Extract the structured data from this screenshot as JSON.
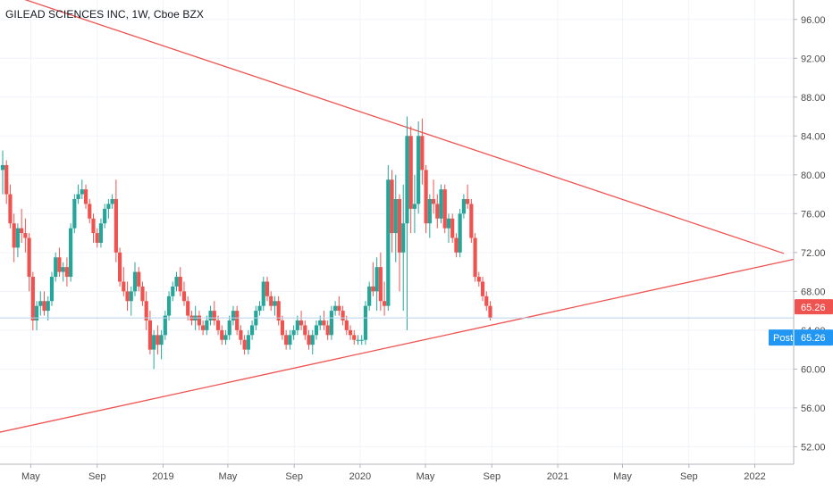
{
  "header": {
    "title": "GILEAD SCIENCES INC, 1W, Cboe BZX"
  },
  "colors": {
    "up": "#26a69a",
    "down": "#ef5350",
    "trendline": "#ef5350",
    "grid": "#f0f3fa",
    "axis_text": "#4a4a4a",
    "price_badge": "#ef5350",
    "post_badge": "#2196f3"
  },
  "badges": {
    "last_price": "65.26",
    "post_label": "Post",
    "post_price": "65.26"
  },
  "chart_data": {
    "type": "candlestick",
    "title": "GILEAD SCIENCES INC, 1W, Cboe BZX",
    "y_axis": {
      "position": "right",
      "range": [
        50.2,
        98.0
      ],
      "ticks": [
        52,
        56,
        60,
        64,
        68,
        72,
        76,
        80,
        84,
        88,
        92,
        96
      ],
      "tick_labels": [
        "52.00",
        "56.00",
        "60.00",
        "64.00",
        "68.00",
        "72.00",
        "76.00",
        "80.00",
        "84.00",
        "88.00",
        "92.00",
        "96.00"
      ]
    },
    "x_axis": {
      "range": [
        "2018-03-05",
        "2022-03-14"
      ],
      "tick_dates": [
        "2018-05-01",
        "2018-09-01",
        "2019-01-01",
        "2019-05-01",
        "2019-09-01",
        "2020-01-01",
        "2020-05-01",
        "2020-09-01",
        "2021-01-01",
        "2021-05-01",
        "2021-09-01",
        "2022-01-01"
      ],
      "tick_labels": [
        "May",
        "Sep",
        "2019",
        "May",
        "Sep",
        "2020",
        "May",
        "Sep",
        "2021",
        "May",
        "Sep",
        "2022"
      ]
    },
    "last_price_line": 65.26,
    "trendlines": [
      {
        "from": [
          "2018-02-01",
          99.5
        ],
        "to": [
          "2022-02-24",
          71.9
        ]
      },
      {
        "from": [
          "2018-03-05",
          53.5
        ],
        "to": [
          "2022-03-14",
          71.3
        ]
      }
    ],
    "candles": [
      [
        "2018-03-05",
        80.5,
        82.5,
        78,
        81
      ],
      [
        "2018-03-12",
        81,
        81.5,
        77,
        78
      ],
      [
        "2018-03-19",
        78,
        79,
        74.5,
        75
      ],
      [
        "2018-03-26",
        75,
        76,
        71,
        72.5
      ],
      [
        "2018-04-02",
        72.5,
        75,
        71.5,
        74.5
      ],
      [
        "2018-04-09",
        74.5,
        76.5,
        73,
        74
      ],
      [
        "2018-04-16",
        74,
        75.5,
        72,
        73.5
      ],
      [
        "2018-04-23",
        73.5,
        74,
        68,
        69.5
      ],
      [
        "2018-04-30",
        69.5,
        70,
        64,
        65
      ],
      [
        "2018-05-07",
        65,
        67,
        64,
        66.5
      ],
      [
        "2018-05-14",
        66.5,
        68,
        65.5,
        67
      ],
      [
        "2018-05-21",
        67,
        68,
        65.5,
        66
      ],
      [
        "2018-05-28",
        66,
        67.5,
        65,
        67
      ],
      [
        "2018-06-04",
        67,
        70,
        66.5,
        69.5
      ],
      [
        "2018-06-11",
        69.5,
        72,
        69,
        71.5
      ],
      [
        "2018-06-18",
        71.5,
        72.5,
        69.5,
        70
      ],
      [
        "2018-06-25",
        70,
        71,
        69,
        70.5
      ],
      [
        "2018-07-02",
        70.5,
        71.5,
        68.5,
        69.5
      ],
      [
        "2018-07-09",
        69.5,
        75,
        69,
        74.5
      ],
      [
        "2018-07-16",
        74.5,
        78,
        74,
        77.5
      ],
      [
        "2018-07-23",
        77.5,
        79,
        77,
        78
      ],
      [
        "2018-07-30",
        78,
        79.5,
        77.5,
        78.5
      ],
      [
        "2018-08-06",
        78.5,
        79,
        76.5,
        77
      ],
      [
        "2018-08-13",
        77,
        77.5,
        75,
        75.5
      ],
      [
        "2018-08-20",
        75.5,
        76,
        73,
        74
      ],
      [
        "2018-08-27",
        74,
        74.5,
        72.5,
        73
      ],
      [
        "2018-09-03",
        73,
        75.5,
        72.5,
        75
      ],
      [
        "2018-09-10",
        75,
        77,
        74.5,
        76.5
      ],
      [
        "2018-09-17",
        76.5,
        77.5,
        75.5,
        77
      ],
      [
        "2018-09-24",
        77,
        78,
        76.5,
        77.5
      ],
      [
        "2018-10-01",
        77.5,
        79.5,
        71,
        72
      ],
      [
        "2018-10-08",
        72,
        72.5,
        68.5,
        69
      ],
      [
        "2018-10-15",
        69,
        70.5,
        67.5,
        68
      ],
      [
        "2018-10-22",
        68,
        69,
        66,
        67
      ],
      [
        "2018-10-29",
        67,
        68.5,
        65.5,
        68
      ],
      [
        "2018-11-05",
        68,
        71,
        67.5,
        70
      ],
      [
        "2018-11-12",
        70,
        70.5,
        68,
        68.5
      ],
      [
        "2018-11-19",
        68.5,
        69,
        66.5,
        67
      ],
      [
        "2018-11-26",
        67,
        68,
        64,
        65
      ],
      [
        "2018-12-03",
        65,
        66,
        61.5,
        62
      ],
      [
        "2018-12-10",
        62,
        64,
        60,
        63.5
      ],
      [
        "2018-12-17",
        63.5,
        64.5,
        61.5,
        62.5
      ],
      [
        "2018-12-24",
        62.5,
        64,
        61,
        63.5
      ],
      [
        "2018-12-31",
        63.5,
        66,
        63,
        65.5
      ],
      [
        "2019-01-07",
        65.5,
        68,
        65,
        67.5
      ],
      [
        "2019-01-14",
        67.5,
        69,
        67,
        68.5
      ],
      [
        "2019-01-21",
        68.5,
        70,
        68,
        69.5
      ],
      [
        "2019-01-28",
        69.5,
        70.5,
        67.5,
        68
      ],
      [
        "2019-02-04",
        68,
        69,
        66.5,
        67
      ],
      [
        "2019-02-11",
        67,
        67.5,
        65,
        65.5
      ],
      [
        "2019-02-18",
        65.5,
        66,
        64.5,
        65
      ],
      [
        "2019-02-25",
        65,
        66.5,
        64,
        65.5
      ],
      [
        "2019-03-04",
        65.5,
        66,
        64,
        64.5
      ],
      [
        "2019-03-11",
        64.5,
        65,
        63.5,
        64
      ],
      [
        "2019-03-18",
        64,
        65.5,
        63.5,
        65
      ],
      [
        "2019-03-25",
        65,
        66.5,
        64.5,
        66
      ],
      [
        "2019-04-01",
        66,
        67,
        64.5,
        65
      ],
      [
        "2019-04-08",
        65,
        65.5,
        63.5,
        64
      ],
      [
        "2019-04-15",
        64,
        64.5,
        62.5,
        63
      ],
      [
        "2019-04-22",
        63,
        64,
        62.5,
        63.5
      ],
      [
        "2019-04-29",
        63.5,
        65.5,
        63,
        65
      ],
      [
        "2019-05-06",
        65,
        66.5,
        64.5,
        66
      ],
      [
        "2019-05-13",
        66,
        66.5,
        63.5,
        64
      ],
      [
        "2019-05-20",
        64,
        64.5,
        62.5,
        63
      ],
      [
        "2019-05-27",
        63,
        63.5,
        61.5,
        62
      ],
      [
        "2019-06-03",
        62,
        64,
        61.5,
        63.5
      ],
      [
        "2019-06-10",
        63.5,
        65,
        63,
        64.5
      ],
      [
        "2019-06-17",
        64.5,
        66.5,
        64,
        66
      ],
      [
        "2019-06-24",
        66,
        67,
        65.5,
        66.5
      ],
      [
        "2019-07-01",
        66.5,
        69.5,
        66,
        69
      ],
      [
        "2019-07-08",
        69,
        69.5,
        67,
        67.5
      ],
      [
        "2019-07-15",
        67.5,
        68,
        66,
        66.5
      ],
      [
        "2019-07-22",
        66.5,
        67.5,
        65.5,
        67
      ],
      [
        "2019-07-29",
        67,
        67.5,
        64.5,
        65
      ],
      [
        "2019-08-05",
        65,
        65.5,
        63,
        63.5
      ],
      [
        "2019-08-12",
        63.5,
        64,
        62,
        62.5
      ],
      [
        "2019-08-19",
        62.5,
        64,
        62,
        63.5
      ],
      [
        "2019-08-26",
        63.5,
        64.5,
        63,
        64
      ],
      [
        "2019-09-02",
        64,
        65.5,
        63.5,
        65
      ],
      [
        "2019-09-09",
        65,
        66,
        64,
        64.5
      ],
      [
        "2019-09-16",
        64.5,
        65,
        63,
        63.5
      ],
      [
        "2019-09-23",
        63.5,
        64,
        62,
        62.5
      ],
      [
        "2019-09-30",
        62.5,
        64,
        61.5,
        63.5
      ],
      [
        "2019-10-07",
        63.5,
        65,
        63,
        64.5
      ],
      [
        "2019-10-14",
        64.5,
        65.5,
        64,
        65
      ],
      [
        "2019-10-21",
        65,
        66,
        64,
        64.5
      ],
      [
        "2019-10-28",
        64.5,
        65,
        63,
        63.5
      ],
      [
        "2019-11-04",
        63.5,
        66.5,
        63,
        66
      ],
      [
        "2019-11-11",
        66,
        67,
        65.5,
        66.5
      ],
      [
        "2019-11-18",
        66.5,
        67.5,
        65.5,
        66
      ],
      [
        "2019-11-25",
        66,
        66.5,
        64.5,
        65
      ],
      [
        "2019-12-02",
        65,
        65.5,
        63.5,
        64
      ],
      [
        "2019-12-09",
        64,
        64.5,
        63,
        63.5
      ],
      [
        "2019-12-16",
        63.5,
        64,
        62.5,
        63
      ],
      [
        "2019-12-23",
        63,
        63.5,
        62.5,
        63
      ],
      [
        "2019-12-30",
        63,
        63.5,
        62.5,
        63
      ],
      [
        "2020-01-06",
        63,
        67,
        62.5,
        66.5
      ],
      [
        "2020-01-13",
        66.5,
        69,
        66,
        68.5
      ],
      [
        "2020-01-20",
        68.5,
        71,
        67.5,
        68
      ],
      [
        "2020-01-27",
        68,
        71.5,
        66,
        70.5
      ],
      [
        "2020-02-03",
        70.5,
        72,
        66,
        67
      ],
      [
        "2020-02-10",
        67,
        69,
        65.5,
        66.5
      ],
      [
        "2020-02-17",
        66.5,
        81,
        66,
        79.5
      ],
      [
        "2020-02-24",
        79.5,
        80.5,
        72,
        74
      ],
      [
        "2020-03-02",
        74,
        80,
        71,
        77.5
      ],
      [
        "2020-03-09",
        77.5,
        78,
        68,
        72
      ],
      [
        "2020-03-16",
        72,
        79,
        66,
        75
      ],
      [
        "2020-03-23",
        75,
        86,
        64,
        84
      ],
      [
        "2020-03-30",
        84,
        85,
        74,
        76.5
      ],
      [
        "2020-04-06",
        76.5,
        80,
        74,
        77
      ],
      [
        "2020-04-13",
        77,
        85.5,
        76,
        84
      ],
      [
        "2020-04-20",
        84,
        85.8,
        79,
        80.5
      ],
      [
        "2020-04-27",
        80.5,
        81,
        74,
        75
      ],
      [
        "2020-05-04",
        75,
        78,
        73.5,
        77.5
      ],
      [
        "2020-05-11",
        77.5,
        79.5,
        76,
        77
      ],
      [
        "2020-05-18",
        77,
        78,
        74.5,
        75.5
      ],
      [
        "2020-05-25",
        75.5,
        79,
        75,
        78.5
      ],
      [
        "2020-06-01",
        78.5,
        79,
        74,
        74.5
      ],
      [
        "2020-06-08",
        74.5,
        76,
        73,
        75.5
      ],
      [
        "2020-06-15",
        75.5,
        76,
        73,
        73.5
      ],
      [
        "2020-06-22",
        73.5,
        74,
        71.5,
        72
      ],
      [
        "2020-06-29",
        72,
        76.5,
        71.5,
        76
      ],
      [
        "2020-07-06",
        76,
        78,
        75.5,
        77.5
      ],
      [
        "2020-07-13",
        77.5,
        79,
        76.5,
        77
      ],
      [
        "2020-07-20",
        77,
        77.5,
        73,
        73.5
      ],
      [
        "2020-07-27",
        73.5,
        74,
        69,
        69.5
      ],
      [
        "2020-08-03",
        69.5,
        70,
        68.5,
        69
      ],
      [
        "2020-08-10",
        69,
        69.5,
        67,
        67.5
      ],
      [
        "2020-08-17",
        67.5,
        68,
        66,
        66.5
      ],
      [
        "2020-08-24",
        66.5,
        67,
        65,
        65.26
      ]
    ]
  }
}
